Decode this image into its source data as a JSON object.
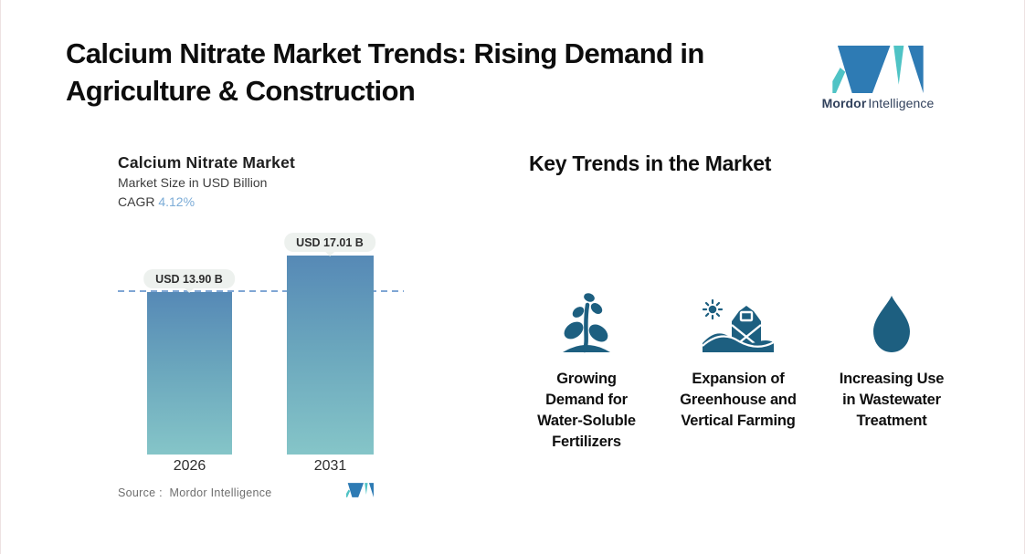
{
  "page": {
    "title": "Calcium Nitrate Market Trends: Rising Demand in\nAgriculture & Construction"
  },
  "brand": {
    "name_bold": "Mordor",
    "name_regular": "Intelligence",
    "colors": {
      "blue": "#2e7bb4",
      "teal": "#4fc3c5",
      "text": "#31415c"
    }
  },
  "chart": {
    "title": "Calcium Nitrate Market",
    "subtitle": "Market Size in USD Billion",
    "cagr_label": "CAGR",
    "cagr_value": "4.12%",
    "source": "Source :  Mordor Intelligence"
  },
  "chart_data": {
    "type": "bar",
    "categories": [
      "2026",
      "2031"
    ],
    "values": [
      13.9,
      17.01
    ],
    "value_labels": [
      "USD 13.90 B",
      "USD 17.01 B"
    ],
    "title": "Calcium Nitrate Market",
    "ylabel": "Market Size in USD Billion",
    "cagr_percent": 4.12,
    "ylim": [
      0,
      17.01
    ],
    "reference_line": {
      "at": 13.9,
      "style": "dashed",
      "color": "#7fa6d4"
    },
    "bar_gradient_top": "#5689b6",
    "bar_gradient_bottom": "#85c5c8",
    "legend": "none",
    "grid": "off"
  },
  "trends": {
    "heading": "Key Trends in the Market",
    "icon_color": "#1d5f80",
    "items": [
      {
        "icon": "seedling-icon",
        "label": "Growing\nDemand for\nWater-Soluble\nFertilizers"
      },
      {
        "icon": "barn-icon",
        "label": "Expansion of\nGreenhouse and\nVertical Farming"
      },
      {
        "icon": "water-drop-icon",
        "label": "Increasing Use\nin Wastewater\nTreatment"
      }
    ]
  }
}
